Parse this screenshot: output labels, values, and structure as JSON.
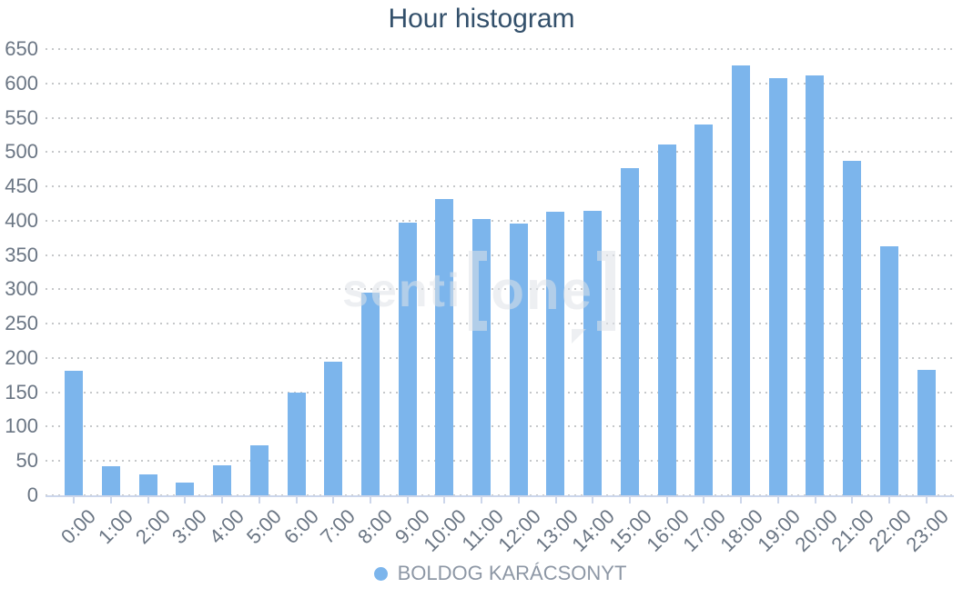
{
  "title": "Hour histogram",
  "legend": {
    "label": "BOLDOG KARÁCSONYT"
  },
  "watermark": {
    "prefix": "senti",
    "word": "one"
  },
  "colors": {
    "bar": "#7cb5ec",
    "axis_line": "#ccd6eb",
    "gridline_dots": "#c6c8ca",
    "title_text": "#33506b",
    "axis_label_text": "#6b7684",
    "legend_text": "#8d97a5"
  },
  "chart_data": {
    "type": "bar",
    "title": "Hour histogram",
    "series_name": "BOLDOG KARÁCSONYT",
    "categories": [
      "0:00",
      "1:00",
      "2:00",
      "3:00",
      "4:00",
      "5:00",
      "6:00",
      "7:00",
      "8:00",
      "9:00",
      "10:00",
      "11:00",
      "12:00",
      "13:00",
      "14:00",
      "15:00",
      "16:00",
      "17:00",
      "18:00",
      "19:00",
      "20:00",
      "21:00",
      "22:00",
      "23:00"
    ],
    "values": [
      182,
      42,
      30,
      18,
      44,
      73,
      150,
      195,
      295,
      397,
      431,
      402,
      396,
      413,
      415,
      477,
      511,
      540,
      626,
      608,
      611,
      487,
      363,
      183
    ],
    "xlabel": "",
    "ylabel": "",
    "ylim": [
      0,
      650
    ],
    "yticks": [
      0,
      50,
      100,
      150,
      200,
      250,
      300,
      350,
      400,
      450,
      500,
      550,
      600,
      650
    ],
    "grid": "horizontal-dotted",
    "legend_position": "bottom-center"
  }
}
